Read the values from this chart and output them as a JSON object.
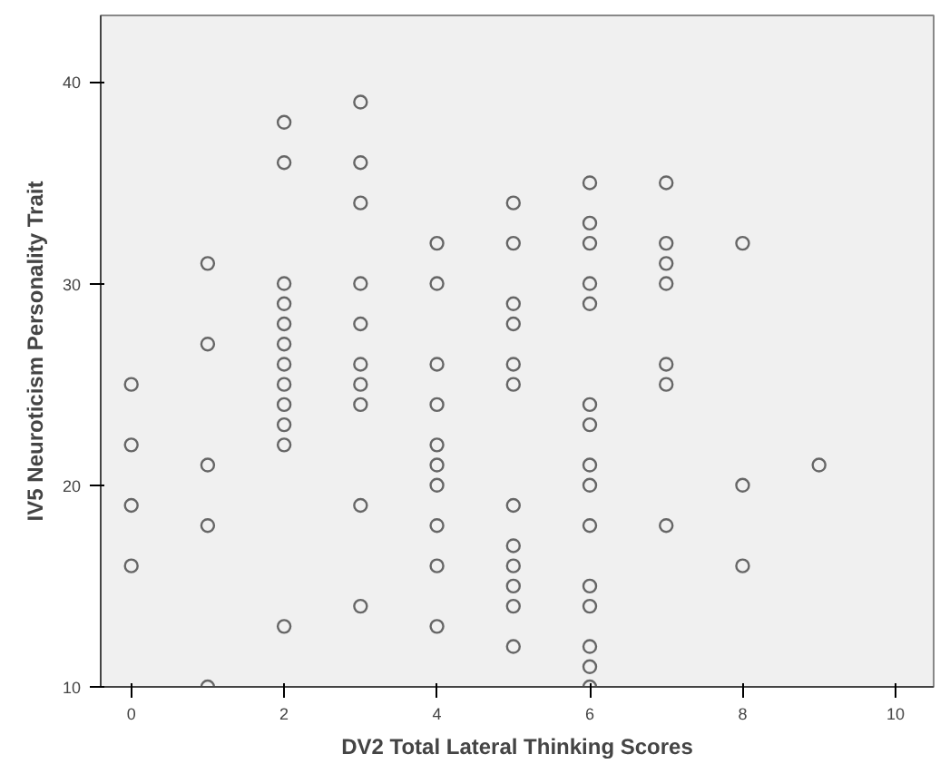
{
  "chart_data": {
    "type": "scatter",
    "xlabel": "DV2 Total Lateral Thinking Scores",
    "ylabel": "IV5 Neuroticism Personality Trait",
    "x": [
      0,
      0,
      0,
      0,
      1,
      1,
      1,
      1,
      1,
      2,
      2,
      2,
      2,
      2,
      2,
      2,
      2,
      2,
      2,
      2,
      2,
      3,
      3,
      3,
      3,
      3,
      3,
      3,
      3,
      3,
      3,
      4,
      4,
      4,
      4,
      4,
      4,
      4,
      4,
      4,
      4,
      5,
      5,
      5,
      5,
      5,
      5,
      5,
      5,
      5,
      5,
      5,
      5,
      6,
      6,
      6,
      6,
      6,
      6,
      6,
      6,
      6,
      6,
      6,
      6,
      6,
      6,
      6,
      7,
      7,
      7,
      7,
      7,
      7,
      7,
      8,
      8,
      8,
      9
    ],
    "values": [
      25,
      22,
      19,
      16,
      31,
      27,
      21,
      18,
      10,
      38,
      36,
      30,
      29,
      28,
      27,
      26,
      25,
      24,
      23,
      22,
      13,
      39,
      36,
      34,
      30,
      28,
      26,
      25,
      24,
      19,
      14,
      32,
      30,
      26,
      24,
      22,
      21,
      20,
      18,
      16,
      13,
      34,
      32,
      29,
      28,
      26,
      25,
      19,
      17,
      16,
      15,
      14,
      12,
      35,
      33,
      32,
      30,
      29,
      24,
      23,
      21,
      20,
      18,
      15,
      14,
      12,
      11,
      10,
      35,
      32,
      31,
      30,
      26,
      25,
      18,
      32,
      20,
      16,
      21
    ],
    "color": "#666666",
    "marker": "circle",
    "xlim": [
      -0.4,
      10.5
    ],
    "ylim": [
      10,
      43.3
    ],
    "xticks": [
      0,
      2,
      4,
      6,
      8,
      10
    ],
    "yticks": [
      10,
      20,
      30,
      40
    ],
    "grid": false
  }
}
